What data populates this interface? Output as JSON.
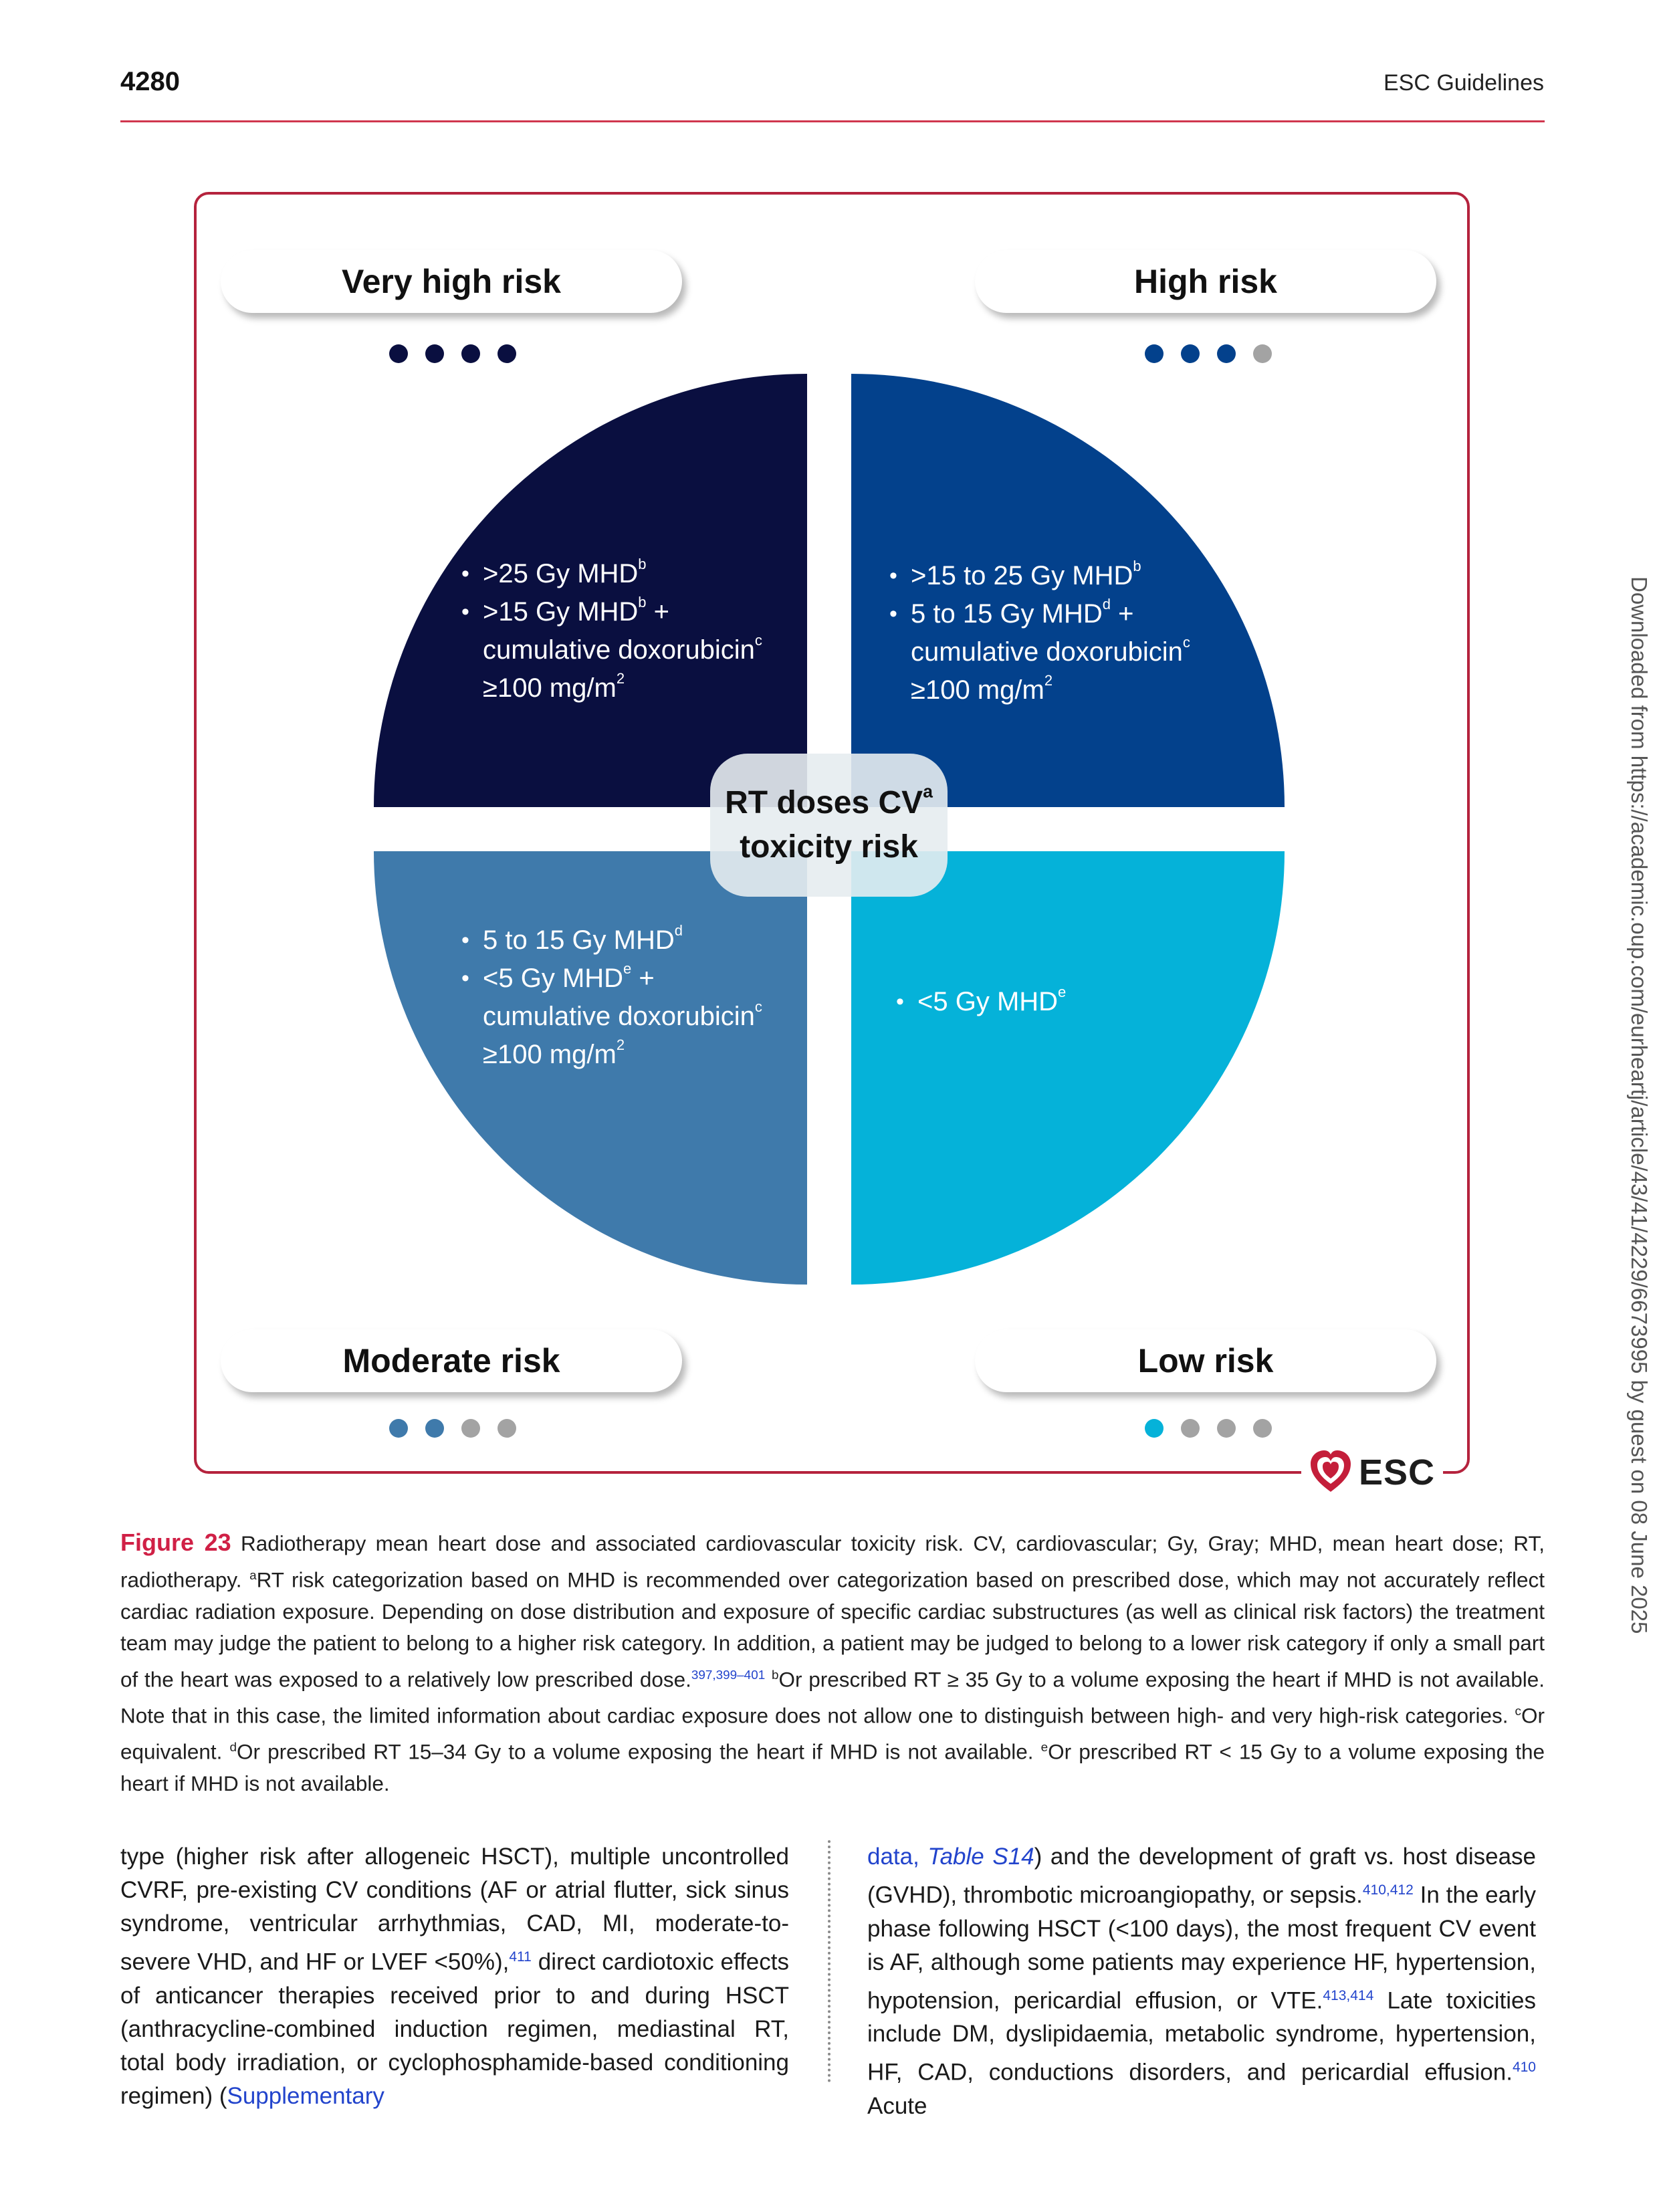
{
  "header": {
    "page_number": "4280",
    "running_head": "ESC Guidelines"
  },
  "figure": {
    "center_label": {
      "line1": "RT doses CV",
      "sup": "a",
      "line2": "toxicity risk"
    },
    "quadrants": {
      "very_high": {
        "title": "Very high risk",
        "dots_filled": 4,
        "dots_total": 4,
        "color": "#0a0f40",
        "items": [
          {
            "text": ">25 Gy MHD",
            "sup": "b",
            "tail": ""
          },
          {
            "text": ">15 Gy MHD",
            "sup": "b",
            "tail": " +",
            "cont1": "cumulative doxorubicin",
            "cont1_sup": "c",
            "cont2": "≥100 mg/m",
            "cont2_sup": "2"
          }
        ]
      },
      "high": {
        "title": "High risk",
        "dots_filled": 3,
        "dots_total": 4,
        "color": "#03418c",
        "items": [
          {
            "text": ">15 to 25 Gy MHD",
            "sup": "b",
            "tail": ""
          },
          {
            "text": "5 to 15 Gy MHD",
            "sup": "d",
            "tail": " +",
            "cont1": "cumulative doxorubicin",
            "cont1_sup": "c",
            "cont2": "≥100 mg/m",
            "cont2_sup": "2"
          }
        ]
      },
      "moderate": {
        "title": "Moderate risk",
        "dots_filled": 2,
        "dots_total": 4,
        "color": "#3f7aab",
        "items": [
          {
            "text": "5 to 15 Gy MHD",
            "sup": "d",
            "tail": ""
          },
          {
            "text": "<5 Gy MHD",
            "sup": "e",
            "tail": " +",
            "cont1": "cumulative doxorubicin",
            "cont1_sup": "c",
            "cont2": "≥100 mg/m",
            "cont2_sup": "2"
          }
        ]
      },
      "low": {
        "title": "Low risk",
        "dots_filled": 1,
        "dots_total": 4,
        "color": "#05b2d9",
        "items": [
          {
            "text": "<5 Gy MHD",
            "sup": "e",
            "tail": ""
          }
        ]
      }
    },
    "dot_empty_color": "#a3a3a3",
    "logo_text": "ESC"
  },
  "caption": {
    "label": "Figure 23",
    "p1": " Radiotherapy mean heart dose and associated cardiovascular toxicity risk. CV, cardiovascular; Gy, Gray; MHD, mean heart dose; RT, radiotherapy. ",
    "sup_a": "a",
    "p2": "RT risk categorization based on MHD is recommended over categorization based on prescribed dose, which may not accurately reflect cardiac radiation exposure. Depending on dose distribution and exposure of specific cardiac substructures (as well as clinical risk factors) the treatment team may judge the patient to belong to a higher risk category. In addition, a patient may be judged to belong to a lower risk category if only a small part of the heart was exposed to a relatively low prescribed dose.",
    "ref1": "397,399–401",
    "sup_b": "b",
    "p3": "Or prescribed RT ≥ 35 Gy to a volume exposing the heart if MHD is not available. Note that in this case, the limited information about cardiac exposure does not allow one to distinguish between high- and very high-risk categories. ",
    "sup_c": "c",
    "p4": "Or equivalent. ",
    "sup_d": "d",
    "p5": "Or prescribed RT 15–34 Gy to a volume exposing the heart if MHD is not available. ",
    "sup_e": "e",
    "p6": "Or prescribed RT < 15 Gy to a volume exposing the heart if MHD is not available."
  },
  "body": {
    "left": {
      "t1": "type (higher risk after allogeneic HSCT), multiple uncontrolled CVRF, pre-existing CV conditions (AF or atrial flutter, sick sinus syndrome, ventricular arrhythmias, CAD, MI, moderate-to-severe VHD, and HF or LVEF <50%),",
      "ref1": "411",
      "t2": " direct cardiotoxic effects of anticancer therapies received prior to and during HSCT (anthracycline-combined induction regimen, mediastinal RT, total body irradiation, or cyclophosphamide-based conditioning regimen) (",
      "link": "Supplementary"
    },
    "right": {
      "link1": "data, ",
      "link2": "Table S14",
      "t1": ") and the development of graft vs. host disease (GVHD), thrombotic microangiopathy, or sepsis.",
      "ref1": "410,412",
      "t2": " In the early phase following HSCT (<100 days), the most frequent CV event is AF, although some patients may experience HF, hypertension, hypotension, pericardial effusion, or VTE.",
      "ref2": "413,414",
      "t3": " Late toxicities include DM, dyslipidaemia, metabolic syndrome, hypertension, HF, CAD, conductions disorders, and pericardial effusion.",
      "ref3": "410",
      "t4": " Acute"
    }
  },
  "side_note": "Downloaded from https://academic.oup.com/eurheartj/article/43/41/4229/6673995 by guest on 08 June 2025"
}
